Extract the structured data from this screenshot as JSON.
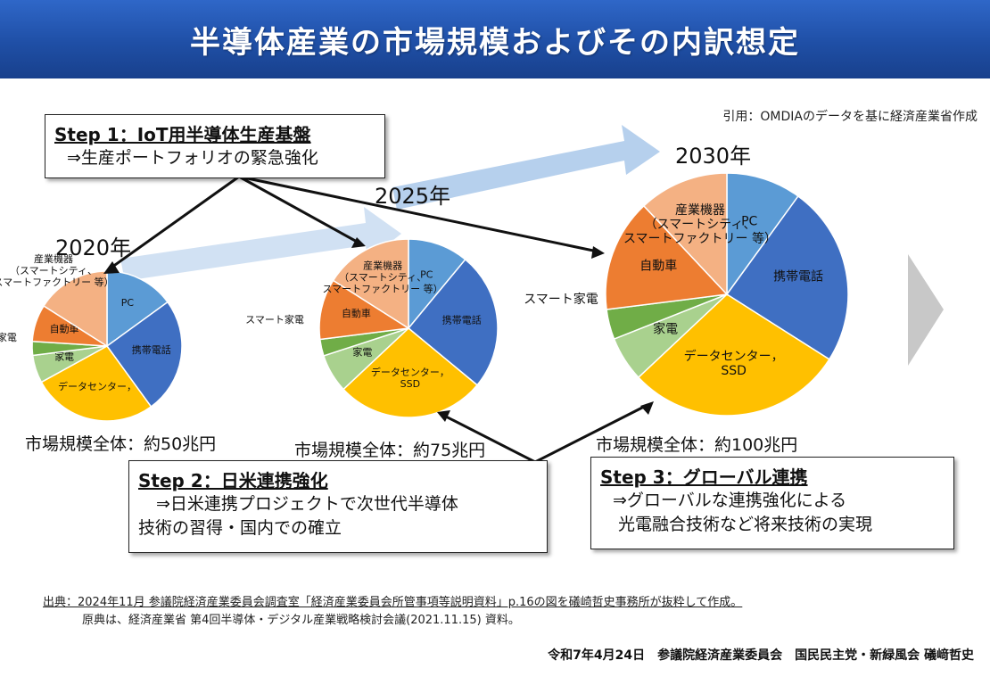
{
  "title": "半導体産業の市場規模およびその内訳想定",
  "source_note": "引用：OMDIAのデータを基に経済産業省作成",
  "steps": {
    "step1": {
      "title": "Step 1：IoT用半導体生産基盤",
      "desc": "⇒生産ポートフォリオの緊急強化"
    },
    "step2": {
      "title": "Step 2：日米連携強化",
      "desc1": "⇒日米連携プロジェクトで次世代半導体",
      "desc2": "技術の習得・国内での確立"
    },
    "step3": {
      "title": "Step 3：グローバル連携",
      "desc1": "⇒グローバルな連携強化による",
      "desc2": "光電融合技術など将来技術の実現"
    }
  },
  "footer": {
    "line1": "出典：2024年11月 参議院経済産業委員会調査室「経済産業委員会所管事項等説明資料」p.16の図を礒崎哲史事務所が抜粋して作成。",
    "line2": "原典は、経済産業省 第4回半導体・デジタル産業戦略検討会議(2021.11.15) 資料。",
    "sign": "令和7年4月24日　参議院経済産業委員会　国民民主党・新緑風会 礒﨑哲史"
  },
  "colors": {
    "pc": "#5b9bd5",
    "mobile": "#3f6fc2",
    "datacenter": "#ffc000",
    "appliance": "#a9d18e",
    "home": "#70ad47",
    "auto": "#ed7d31",
    "industrial": "#f4b183",
    "title_bar": "#1f4fa6",
    "arrow_blue": "#9dc3e6",
    "arrow_gray": "#bfbfbf"
  },
  "chart_data": [
    {
      "type": "pie",
      "year_label": "2020年",
      "market_label": "市場規模全体：約50兆円",
      "series": [
        {
          "name": "PC",
          "value": 15
        },
        {
          "name": "携帯電話",
          "value": 25
        },
        {
          "name": "データセンター，",
          "value": 27
        },
        {
          "name": "家電",
          "value": 6
        },
        {
          "name": "スマート家電",
          "value": 3
        },
        {
          "name": "自動車",
          "value": 8
        },
        {
          "name": "産業機器（スマートシティ、スマートファクトリー 等）",
          "value": 16
        }
      ]
    },
    {
      "type": "pie",
      "year_label": "2025年",
      "market_label": "市場規模全体：約75兆円",
      "series": [
        {
          "name": "PC",
          "value": 11
        },
        {
          "name": "携帯電話",
          "value": 25
        },
        {
          "name": "データセンター，SSD",
          "value": 27
        },
        {
          "name": "家電",
          "value": 7
        },
        {
          "name": "スマート家電",
          "value": 3
        },
        {
          "name": "自動車",
          "value": 11
        },
        {
          "name": "産業機器（スマートシティ、スマートファクトリー 等）",
          "value": 16
        }
      ]
    },
    {
      "type": "pie",
      "year_label": "2030年",
      "market_label": "市場規模全体：約100兆円",
      "series": [
        {
          "name": "PC",
          "value": 10
        },
        {
          "name": "携帯電話",
          "value": 24
        },
        {
          "name": "データセンター，SSD",
          "value": 29
        },
        {
          "name": "家電",
          "value": 6
        },
        {
          "name": "スマート家電",
          "value": 4
        },
        {
          "name": "自動車",
          "value": 15
        },
        {
          "name": "産業機器（スマートシティ、スマートファクトリー 等）",
          "value": 12
        }
      ]
    }
  ]
}
